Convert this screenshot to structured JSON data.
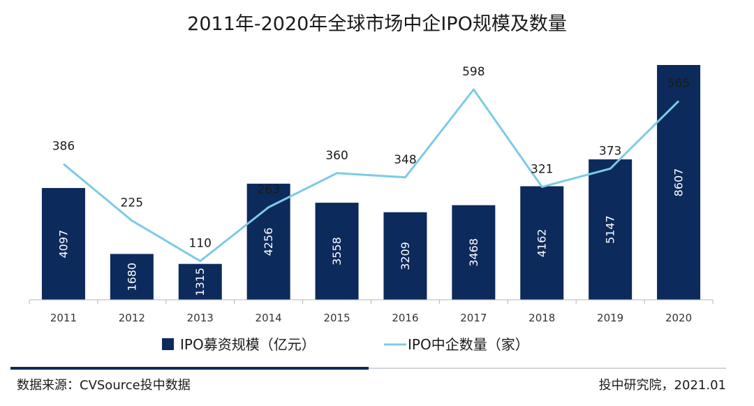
{
  "chart_data": {
    "type": "bar",
    "title": "2011年-2020年全球市场中企IPO规模及数量",
    "categories": [
      "2011",
      "2012",
      "2013",
      "2014",
      "2015",
      "2016",
      "2017",
      "2018",
      "2019",
      "2020"
    ],
    "series": [
      {
        "name": "IPO募资规模（亿元）",
        "type": "bar",
        "color": "#0d2a5c",
        "values": [
          4097,
          1680,
          1315,
          4256,
          3558,
          3209,
          3468,
          4162,
          5147,
          8607
        ]
      },
      {
        "name": "IPO中企数量（家）",
        "type": "line",
        "color": "#7ccbe6",
        "values": [
          386,
          225,
          110,
          263,
          360,
          348,
          598,
          321,
          373,
          565
        ]
      }
    ],
    "bar_ylim": [
      0,
      9000
    ],
    "line_ylim": [
      0,
      650
    ],
    "grid": false,
    "legend_position": "bottom"
  },
  "footer": {
    "source": "数据来源：CVSource投中数据",
    "credit": "投中研究院，2021.01"
  },
  "colors": {
    "bar": "#0d2a5c",
    "line": "#7ccbe6",
    "divider_dark": "#0d2a5c",
    "divider_light": "#d0d3d8"
  }
}
